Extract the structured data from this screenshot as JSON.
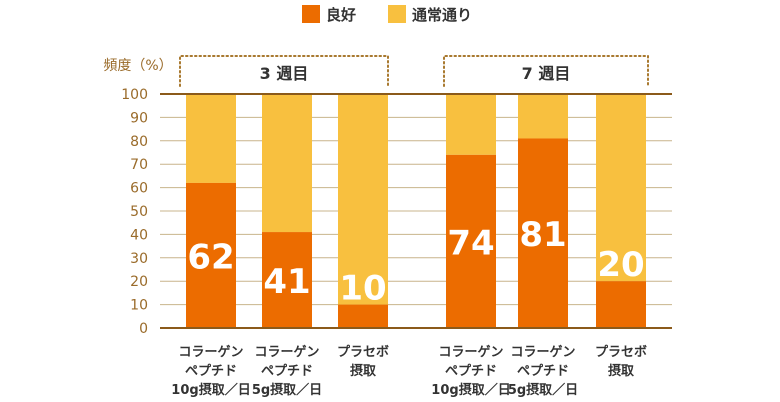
{
  "chart_data": {
    "type": "bar",
    "stacked": true,
    "ylabel": "頻度（%）",
    "ylim": [
      0,
      100
    ],
    "yticks": [
      0,
      10,
      20,
      30,
      40,
      50,
      60,
      70,
      80,
      90,
      100
    ],
    "grid": true,
    "legend_position": "top",
    "legend": [
      {
        "name": "良好",
        "color": "#ec6c00"
      },
      {
        "name": "通常通り",
        "color": "#f8c03f"
      }
    ],
    "groups": [
      {
        "label": "3 週目",
        "categories": [
          {
            "label": [
              "コラーゲン",
              "ペプチド",
              "10g摂取／日"
            ],
            "good": 62
          },
          {
            "label": [
              "コラーゲン",
              "ペプチド",
              "5g摂取／日"
            ],
            "good": 41
          },
          {
            "label": [
              "プラセボ",
              "摂取"
            ],
            "good": 10
          }
        ]
      },
      {
        "label": "7 週目",
        "categories": [
          {
            "label": [
              "コラーゲン",
              "ペプチド",
              "10g摂取／日"
            ],
            "good": 74
          },
          {
            "label": [
              "コラーゲン",
              "ペプチド",
              "5g摂取／日"
            ],
            "good": 81
          },
          {
            "label": [
              "プラセボ",
              "摂取"
            ],
            "good": 20
          }
        ]
      }
    ],
    "colors": {
      "good": "#ec6c00",
      "normal": "#f8c03f",
      "axis": "#8b5a1a",
      "grid": "#c8b48c",
      "tick_text": "#9a6b2a",
      "bracket": "#a8782e"
    }
  }
}
